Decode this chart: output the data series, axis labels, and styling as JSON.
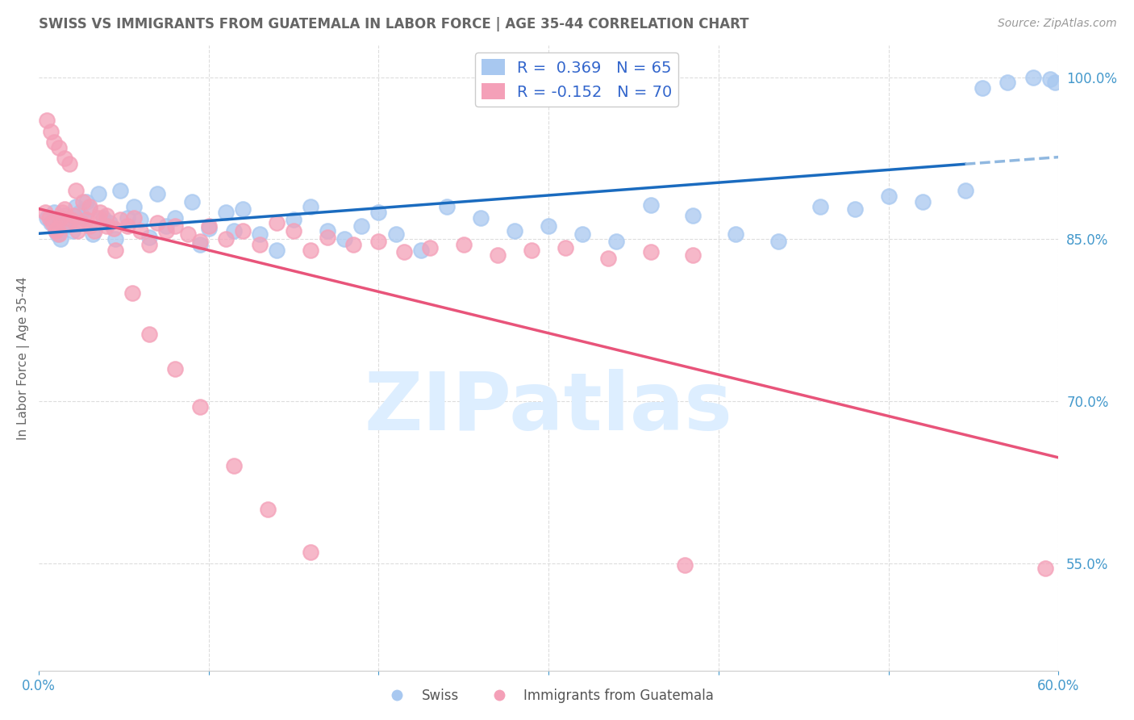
{
  "title": "SWISS VS IMMIGRANTS FROM GUATEMALA IN LABOR FORCE | AGE 35-44 CORRELATION CHART",
  "source": "Source: ZipAtlas.com",
  "ylabel": "In Labor Force | Age 35-44",
  "xlim": [
    0.0,
    0.6
  ],
  "ylim": [
    0.45,
    1.03
  ],
  "xticks": [
    0.0,
    0.1,
    0.2,
    0.3,
    0.4,
    0.5,
    0.6
  ],
  "xticklabels": [
    "0.0%",
    "",
    "",
    "",
    "",
    "",
    "60.0%"
  ],
  "yticks_right": [
    0.55,
    0.7,
    0.85,
    1.0
  ],
  "ytick_right_labels": [
    "55.0%",
    "70.0%",
    "85.0%",
    "100.0%"
  ],
  "swiss_R": 0.369,
  "swiss_N": 65,
  "guate_R": -0.152,
  "guate_N": 70,
  "swiss_color": "#a8c8f0",
  "guate_color": "#f4a0b8",
  "trend_swiss_color": "#1a6bbf",
  "trend_guate_color": "#e8547a",
  "trend_swiss_dashed_color": "#90b8e0",
  "background_color": "#ffffff",
  "grid_color": "#dddddd",
  "title_color": "#666666",
  "axis_label_color": "#666666",
  "tick_color": "#4499cc",
  "legend_label_color": "#3366cc",
  "watermark_color": "#ddeeff",
  "swiss_x": [
    0.005,
    0.007,
    0.009,
    0.01,
    0.011,
    0.012,
    0.013,
    0.015,
    0.016,
    0.018,
    0.02,
    0.022,
    0.024,
    0.026,
    0.028,
    0.03,
    0.032,
    0.035,
    0.038,
    0.042,
    0.045,
    0.048,
    0.052,
    0.056,
    0.06,
    0.065,
    0.07,
    0.075,
    0.08,
    0.09,
    0.095,
    0.1,
    0.11,
    0.115,
    0.12,
    0.13,
    0.14,
    0.15,
    0.16,
    0.17,
    0.18,
    0.19,
    0.2,
    0.21,
    0.225,
    0.24,
    0.26,
    0.28,
    0.3,
    0.32,
    0.34,
    0.36,
    0.385,
    0.41,
    0.435,
    0.46,
    0.48,
    0.5,
    0.52,
    0.545,
    0.555,
    0.57,
    0.585,
    0.595,
    0.598
  ],
  "swiss_y": [
    0.87,
    0.865,
    0.875,
    0.86,
    0.855,
    0.858,
    0.85,
    0.872,
    0.868,
    0.862,
    0.858,
    0.88,
    0.875,
    0.87,
    0.885,
    0.878,
    0.855,
    0.892,
    0.87,
    0.865,
    0.85,
    0.895,
    0.87,
    0.88,
    0.868,
    0.852,
    0.892,
    0.862,
    0.87,
    0.885,
    0.845,
    0.86,
    0.875,
    0.858,
    0.878,
    0.855,
    0.84,
    0.868,
    0.88,
    0.858,
    0.85,
    0.862,
    0.875,
    0.855,
    0.84,
    0.88,
    0.87,
    0.858,
    0.862,
    0.855,
    0.848,
    0.882,
    0.872,
    0.855,
    0.848,
    0.88,
    0.878,
    0.89,
    0.885,
    0.895,
    0.99,
    0.995,
    1.0,
    0.998,
    0.995
  ],
  "guate_x": [
    0.004,
    0.006,
    0.008,
    0.01,
    0.011,
    0.012,
    0.013,
    0.014,
    0.015,
    0.017,
    0.019,
    0.021,
    0.023,
    0.025,
    0.028,
    0.03,
    0.033,
    0.036,
    0.04,
    0.044,
    0.048,
    0.052,
    0.056,
    0.06,
    0.065,
    0.07,
    0.075,
    0.08,
    0.088,
    0.095,
    0.1,
    0.11,
    0.12,
    0.13,
    0.14,
    0.15,
    0.16,
    0.17,
    0.185,
    0.2,
    0.215,
    0.23,
    0.25,
    0.27,
    0.29,
    0.31,
    0.335,
    0.36,
    0.385,
    0.005,
    0.007,
    0.009,
    0.012,
    0.015,
    0.018,
    0.022,
    0.026,
    0.03,
    0.035,
    0.04,
    0.045,
    0.055,
    0.065,
    0.08,
    0.095,
    0.115,
    0.135,
    0.16,
    0.38,
    0.592
  ],
  "guate_y": [
    0.875,
    0.87,
    0.865,
    0.858,
    0.86,
    0.855,
    0.87,
    0.875,
    0.878,
    0.865,
    0.868,
    0.872,
    0.858,
    0.865,
    0.868,
    0.862,
    0.858,
    0.875,
    0.872,
    0.86,
    0.868,
    0.862,
    0.87,
    0.858,
    0.845,
    0.865,
    0.858,
    0.862,
    0.855,
    0.848,
    0.862,
    0.85,
    0.858,
    0.845,
    0.865,
    0.858,
    0.84,
    0.852,
    0.845,
    0.848,
    0.838,
    0.842,
    0.845,
    0.835,
    0.84,
    0.842,
    0.832,
    0.838,
    0.835,
    0.96,
    0.95,
    0.94,
    0.935,
    0.925,
    0.92,
    0.895,
    0.885,
    0.88,
    0.87,
    0.862,
    0.84,
    0.8,
    0.762,
    0.73,
    0.695,
    0.64,
    0.6,
    0.56,
    0.548,
    0.545
  ],
  "figsize": [
    14.06,
    8.92
  ],
  "dpi": 100
}
